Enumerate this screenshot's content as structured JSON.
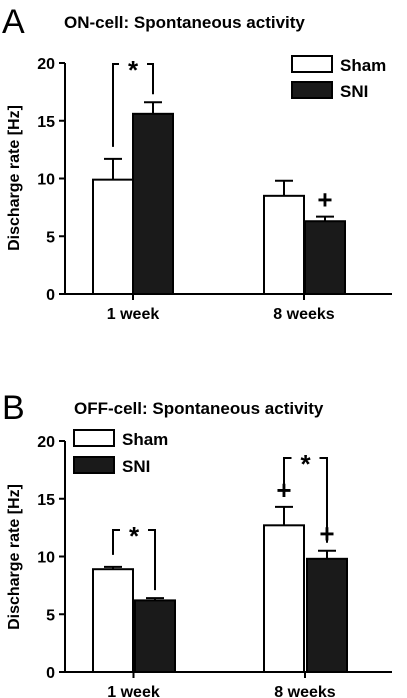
{
  "chart_data": [
    {
      "panel": "A",
      "title": "ON-cell: Spontaneous activity",
      "type": "bar",
      "ylabel": "Discharge rate [Hz]",
      "ylim": [
        0,
        20
      ],
      "yticks": [
        "0",
        "5",
        "10",
        "15",
        "20"
      ],
      "categories": [
        "1 week",
        "8 weeks"
      ],
      "series": [
        {
          "name": "Sham",
          "color": "#ffffff",
          "values": [
            9.9,
            8.5
          ],
          "errors": [
            1.8,
            1.3
          ]
        },
        {
          "name": "SNI",
          "color": "#1a1a1a",
          "values": [
            15.6,
            6.3
          ],
          "errors": [
            1.0,
            0.4
          ]
        }
      ],
      "legend": {
        "position": "top-right"
      },
      "annotations": [
        {
          "text": "*",
          "type": "bracket",
          "category": 0
        },
        {
          "text": "+",
          "type": "marker",
          "category": 1,
          "series": 1
        }
      ]
    },
    {
      "panel": "B",
      "title": "OFF-cell: Spontaneous activity",
      "type": "bar",
      "ylabel": "Discharge rate [Hz]",
      "ylim": [
        0,
        20
      ],
      "yticks": [
        "0",
        "5",
        "10",
        "15",
        "20"
      ],
      "categories": [
        "1 week",
        "8 weeks"
      ],
      "series": [
        {
          "name": "Sham",
          "color": "#ffffff",
          "values": [
            8.9,
            12.7
          ],
          "errors": [
            0.2,
            1.6
          ]
        },
        {
          "name": "SNI",
          "color": "#1a1a1a",
          "values": [
            6.2,
            9.8
          ],
          "errors": [
            0.2,
            0.7
          ]
        }
      ],
      "legend": {
        "position": "top-left"
      },
      "annotations": [
        {
          "text": "*",
          "type": "bracket",
          "category": 0
        },
        {
          "text": "*",
          "type": "bracket",
          "category": 1
        },
        {
          "text": "+",
          "type": "marker",
          "category": 1,
          "series": 0
        },
        {
          "text": "+",
          "type": "marker",
          "category": 1,
          "series": 1
        }
      ]
    }
  ]
}
